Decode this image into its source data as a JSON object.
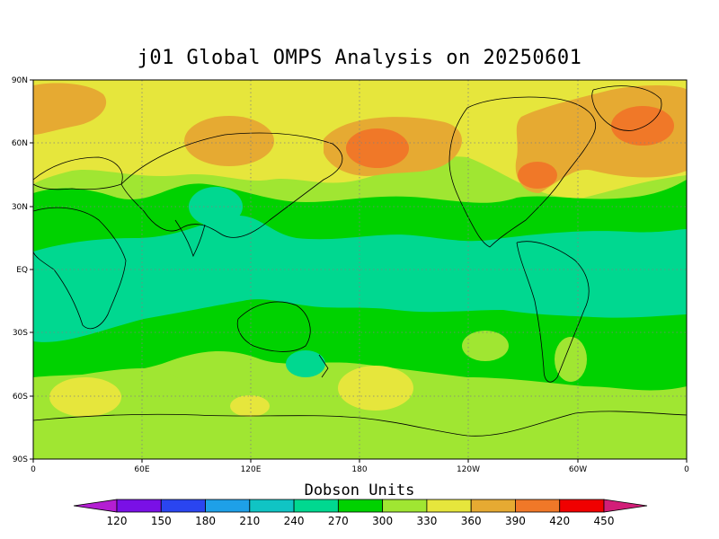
{
  "title": "j01 Global OMPS Analysis on 20250601",
  "colorbar": {
    "title": "Dobson Units",
    "levels": [
      120,
      150,
      180,
      210,
      240,
      270,
      300,
      330,
      360,
      390,
      420,
      450
    ],
    "colors": [
      "#b41ed2",
      "#7a10e6",
      "#2a45f0",
      "#1ea0e8",
      "#10c4c4",
      "#00d890",
      "#00d200",
      "#a0e632",
      "#e6e63c",
      "#e6aa32",
      "#f07828",
      "#f00000",
      "#d21e78"
    ]
  },
  "axes": {
    "y_ticks": [
      "90N",
      "60N",
      "30N",
      "EQ",
      "30S",
      "60S",
      "90S"
    ],
    "x_ticks": [
      "0",
      "60E",
      "120E",
      "180",
      "120W",
      "60W",
      "0"
    ]
  },
  "legend_colors": {
    "c270": "#00d890",
    "c300": "#00d200",
    "c330": "#a0e632",
    "c360": "#e6e63c",
    "c390": "#e6aa32",
    "c420": "#f07828"
  }
}
